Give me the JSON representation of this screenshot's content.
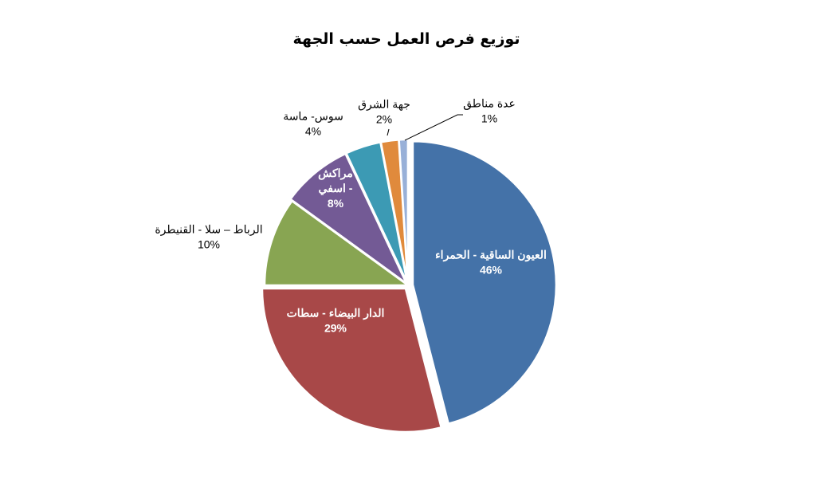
{
  "chart_data": {
    "type": "pie",
    "title": "توزيع فرص العمل حسب الجهة",
    "slices": [
      {
        "name": "العيون الساقية - الحمراء",
        "value": 46,
        "label": "46%",
        "color": "#4472a8"
      },
      {
        "name": "الدار البيضاء - سطات",
        "value": 29,
        "label": "29%",
        "color": "#a84848"
      },
      {
        "name": "الرباط – سلا - القنيطرة",
        "value": 10,
        "label": "10%",
        "color": "#88a552"
      },
      {
        "name": "مراكش - اسفي",
        "value": 8,
        "label": "8%",
        "color": "#735a95"
      },
      {
        "name": "سوس- ماسة",
        "value": 4,
        "label": "4%",
        "color": "#3c9ab4"
      },
      {
        "name": "جهة الشرق",
        "value": 2,
        "label": "2%",
        "color": "#e08a3c"
      },
      {
        "name": "عدة مناطق",
        "value": 1,
        "label": "1%",
        "color": "#98b0d8"
      }
    ],
    "legend": "none",
    "data_labels": true
  }
}
